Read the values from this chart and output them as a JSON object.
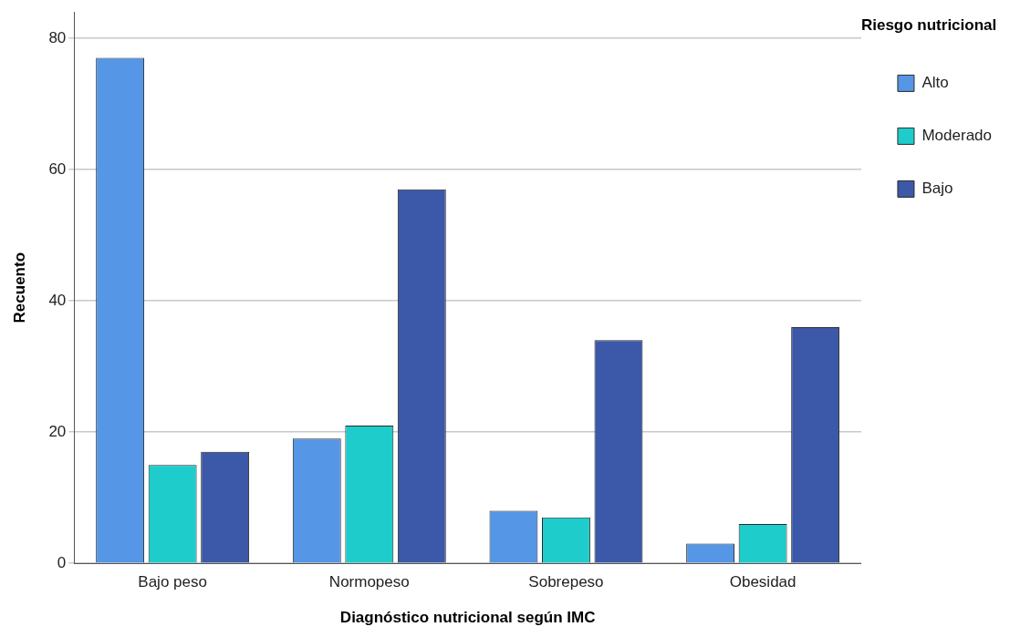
{
  "chart_data": {
    "type": "bar",
    "xlabel": "Diagnóstico nutricional según IMC",
    "ylabel": "Recuento",
    "legend_title": "Riesgo nutricional",
    "categories": [
      "Bajo peso",
      "Normopeso",
      "Sobrepeso",
      "Obesidad"
    ],
    "series": [
      {
        "name": "Alto",
        "color": "#5596e6",
        "values": [
          77,
          19,
          8,
          3
        ]
      },
      {
        "name": "Moderado",
        "color": "#1ecdcb",
        "values": [
          15,
          21,
          7,
          6
        ]
      },
      {
        "name": "Bajo",
        "color": "#3c58a8",
        "values": [
          17,
          57,
          34,
          36
        ]
      }
    ],
    "ylim": [
      0,
      84
    ],
    "yticks": [
      0,
      20,
      40,
      60,
      80
    ],
    "grid": "y",
    "legend": "top right"
  }
}
